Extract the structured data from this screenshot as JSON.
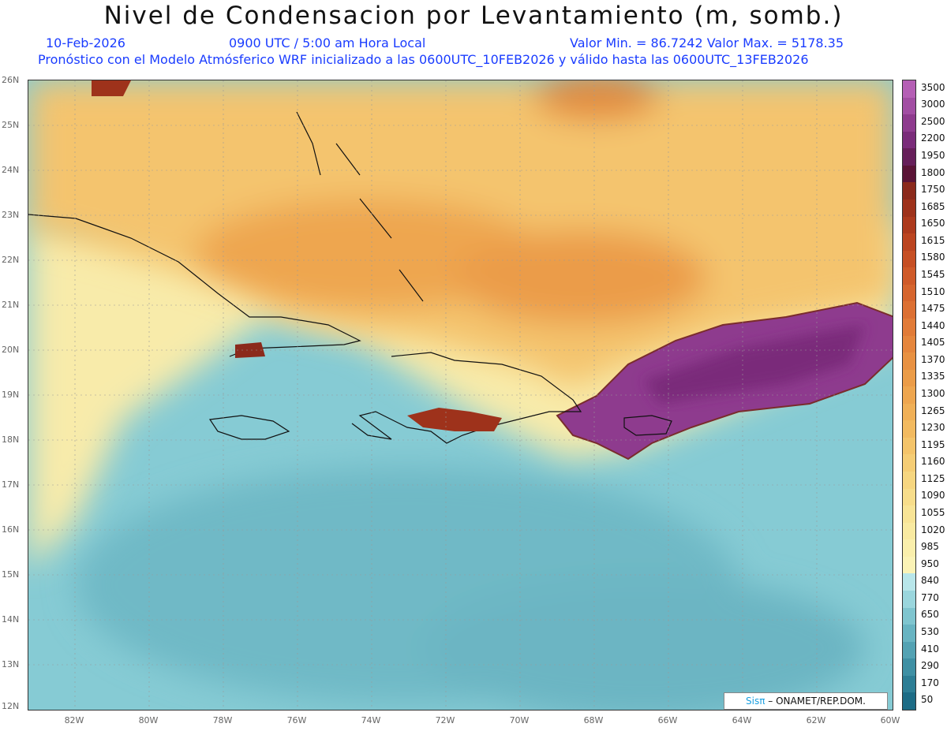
{
  "header": {
    "title": "Nivel de Condensacion por Levantamiento (m, somb.)",
    "date": "10-Feb-2026",
    "time": "0900 UTC / 5:00 am Hora Local",
    "minmax": "Valor Min. = 86.7242   Valor Max. = 5178.35",
    "description": "Pronóstico con el Modelo Atmósferico WRF inicializado a las 0600UTC_10FEB2026 y válido hasta las  0600UTC_13FEB2026"
  },
  "axes": {
    "lat_labels": [
      "26N",
      "25N",
      "24N",
      "23N",
      "22N",
      "21N",
      "20N",
      "19N",
      "18N",
      "17N",
      "16N",
      "15N",
      "14N",
      "13N",
      "12N"
    ],
    "lon_labels": [
      "82W",
      "80W",
      "78W",
      "76W",
      "74W",
      "72W",
      "70W",
      "68W",
      "66W",
      "64W",
      "62W",
      "60W"
    ]
  },
  "colorbar": {
    "labels": [
      "3500",
      "3000",
      "2500",
      "2200",
      "1950",
      "1800",
      "1750",
      "1685",
      "1650",
      "1615",
      "1580",
      "1545",
      "1510",
      "1475",
      "1440",
      "1405",
      "1370",
      "1335",
      "1300",
      "1265",
      "1230",
      "1195",
      "1160",
      "1125",
      "1090",
      "1055",
      "1020",
      "985",
      "950",
      "840",
      "770",
      "650",
      "530",
      "410",
      "290",
      "170",
      "50"
    ],
    "colors": [
      "#b55fb5",
      "#a24ea3",
      "#8e3b8e",
      "#7a2c7a",
      "#661f5a",
      "#5a1436",
      "#8b2a1c",
      "#9e321b",
      "#ad3a1d",
      "#bb4420",
      "#c64f24",
      "#cf5a29",
      "#d6652e",
      "#dc7033",
      "#e17b38",
      "#e5863d",
      "#e89142",
      "#eb9c48",
      "#eea64f",
      "#f0b057",
      "#f2ba60",
      "#f4c46a",
      "#f5cd75",
      "#f6d680",
      "#f7dd8b",
      "#f8e496",
      "#f9eaa1",
      "#faefac",
      "#fbf3b6",
      "#b8e6ea",
      "#9ad6dd",
      "#7fc5cf",
      "#68b4c2",
      "#53a2b3",
      "#3f90a4",
      "#2d7e95",
      "#1d6c86"
    ]
  },
  "credit": {
    "brand": "Sisπ",
    "text": " – ONAMET/REP.DOM."
  }
}
